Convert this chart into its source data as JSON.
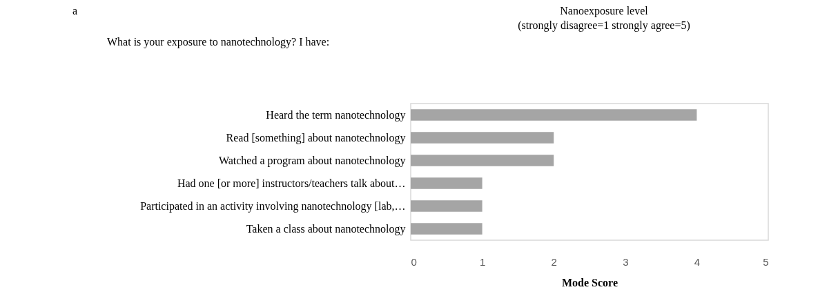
{
  "chart_data": {
    "type": "bar",
    "orientation": "horizontal",
    "title": "Nanoexposure level",
    "subtitle": "(strongly disagree=1 strongly agree=5)",
    "xlabel": "Mode Score",
    "annotations": [
      "a",
      "What is your exposure to nanotechnology? I have:"
    ],
    "categories": [
      "Heard the term nanotechnology",
      "Read [something] about nanotechnology",
      "Watched a program about nanotechnology",
      "Had one [or more] instructors/teachers talk about…",
      "Participated in an activity involving nanotechnology [lab,…",
      "Taken a class about nanotechnology"
    ],
    "values": [
      4,
      2,
      2,
      1,
      1,
      1
    ],
    "color": "#a5a5a5",
    "xlim": [
      0,
      5
    ],
    "xticks": [
      0,
      1,
      2,
      3,
      4,
      5
    ],
    "grid": false
  }
}
